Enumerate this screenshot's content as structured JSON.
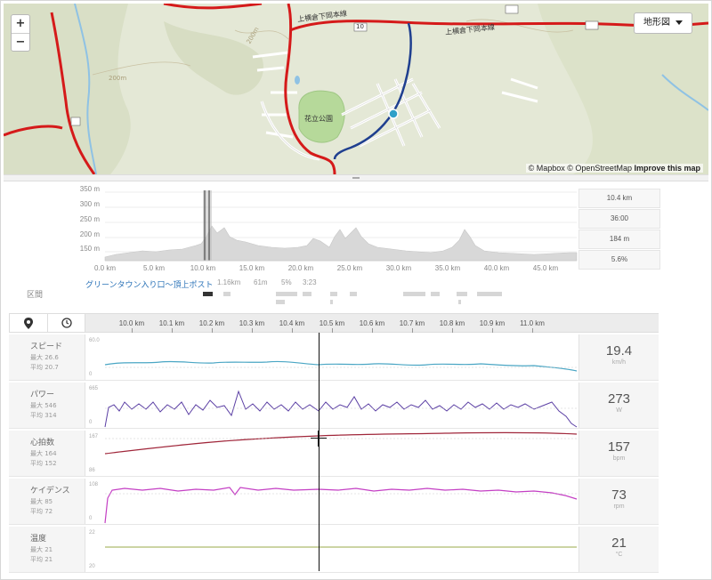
{
  "map": {
    "zoom_in": "+",
    "zoom_out": "−",
    "map_type": "地形図",
    "attribution_mapbox": "© Mapbox",
    "attribution_osm": "© OpenStreetMap",
    "attribution_improve": "Improve this map",
    "labels": {
      "road_1": "上横倉下岡本線",
      "road_2": "上横倉下岡本線",
      "route_no": "10",
      "park": "花立公園",
      "contour_1": "200m",
      "contour_2": "200m"
    },
    "colors": {
      "route": "#d51a1a",
      "selected_segment": "#1f3f8f",
      "marker": "#2fa0c8",
      "park": "#b6d99a",
      "land": "#e4e8d6"
    }
  },
  "elevation": {
    "y_ticks": [
      "350 m",
      "300 m",
      "250 m",
      "200 m",
      "150 m"
    ],
    "x_ticks": [
      "0.0 km",
      "5.0 km",
      "10.0 km",
      "15.0 km",
      "20.0 km",
      "25.0 km",
      "30.0 km",
      "35.0 km",
      "40.0 km",
      "45.0 km"
    ],
    "stats": [
      "10.4 km",
      "36:00",
      "184 m",
      "5.6%"
    ]
  },
  "segments": {
    "title": "区間",
    "selected_name": "グリーンタウン入り口～頂上ポスト",
    "distance": "1.16km",
    "elevation_gain": "61m",
    "grade": "5%",
    "time": "3:23"
  },
  "analysis": {
    "tabs": [
      "map-pin-icon",
      "clock-icon"
    ],
    "km_ticks": [
      "10.0 km",
      "10.1 km",
      "10.2 km",
      "10.3 km",
      "10.4 km",
      "10.5 km",
      "10.6 km",
      "10.7 km",
      "10.8 km",
      "10.9 km",
      "11.0 km"
    ],
    "rows": [
      {
        "name": "スピード",
        "max": "最大 26.6",
        "avg": "平均 20.7",
        "value": "19.4",
        "unit": "km/h",
        "axis_top": "60.0",
        "axis_bottom": "0",
        "color": "#4aa6c4"
      },
      {
        "name": "パワー",
        "max": "最大 546",
        "avg": "平均 314",
        "value": "273",
        "unit": "W",
        "axis_top": "665",
        "axis_bottom": "0",
        "color": "#5b3fa4"
      },
      {
        "name": "心拍数",
        "max": "最大 164",
        "avg": "平均 152",
        "value": "157",
        "unit": "bpm",
        "axis_top": "167",
        "axis_bottom": "86",
        "color": "#a0263a"
      },
      {
        "name": "ケイデンス",
        "max": "最大 85",
        "avg": "平均 72",
        "value": "73",
        "unit": "rpm",
        "axis_top": "108",
        "axis_bottom": "0",
        "color": "#c43fc4"
      },
      {
        "name": "温度",
        "max": "最大 21",
        "avg": "平均 21",
        "value": "21",
        "unit": "°C",
        "axis_top": "22",
        "axis_bottom": "20",
        "color": "#9aaa4a"
      }
    ]
  }
}
